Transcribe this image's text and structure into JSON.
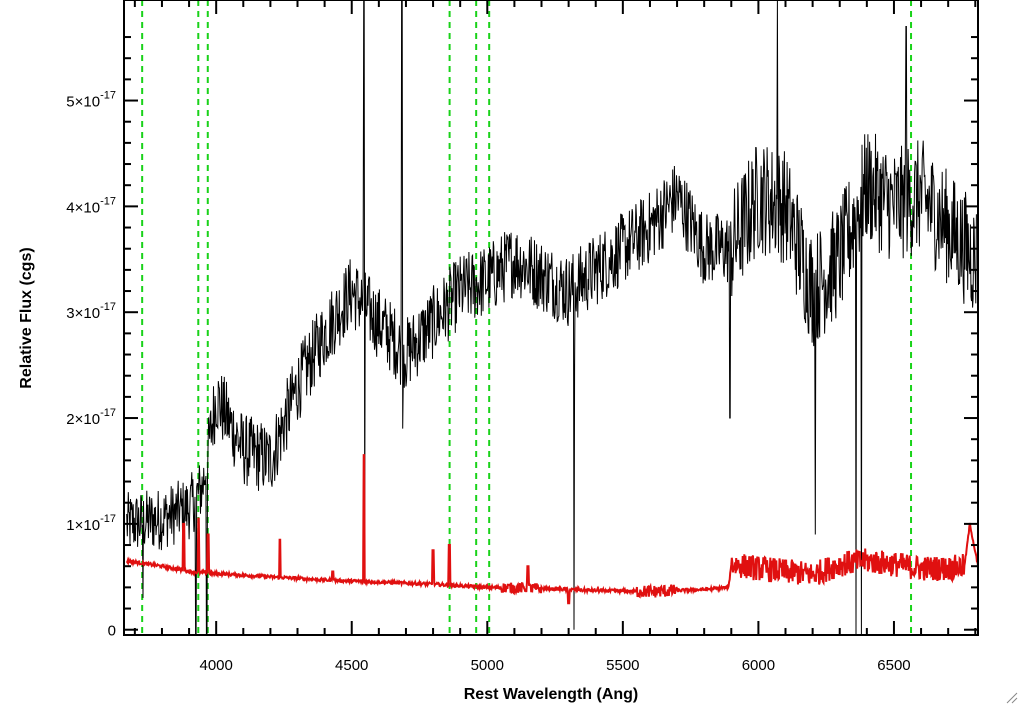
{
  "chart_data": {
    "type": "line",
    "title": "",
    "xlabel": "Rest Wavelength (Ang)",
    "ylabel": "Relative Flux (cgs)",
    "xlim": [
      3660,
      6810
    ],
    "ylim": [
      -5e-19,
      5.95e-17
    ],
    "x_ticks": [
      {
        "value": 4000,
        "label": "4000"
      },
      {
        "value": 4500,
        "label": "4500"
      },
      {
        "value": 5000,
        "label": "5000"
      },
      {
        "value": 5500,
        "label": "5500"
      },
      {
        "value": 6000,
        "label": "6000"
      },
      {
        "value": 6500,
        "label": "6500"
      }
    ],
    "y_ticks": [
      {
        "value": 0,
        "mantissa": "0",
        "exponent": ""
      },
      {
        "value": 1e-17,
        "mantissa": "1×10",
        "exponent": "-17"
      },
      {
        "value": 2e-17,
        "mantissa": "2×10",
        "exponent": "-17"
      },
      {
        "value": 3e-17,
        "mantissa": "3×10",
        "exponent": "-17"
      },
      {
        "value": 4e-17,
        "mantissa": "4×10",
        "exponent": "-17"
      },
      {
        "value": 5e-17,
        "mantissa": "5×10",
        "exponent": "-17"
      }
    ],
    "grid": false,
    "reference_lines_x": [
      3727,
      3934,
      3969,
      4861,
      4959,
      5007,
      6563
    ],
    "series": [
      {
        "role": "observed spectrum",
        "color": "#000000",
        "continuum": [
          [
            3670,
            1e-17
          ],
          [
            3800,
            1.05e-17
          ],
          [
            3900,
            1.15e-17
          ],
          [
            3950,
            1.35e-17
          ],
          [
            4000,
            2.2e-17
          ],
          [
            4100,
            1.7e-17
          ],
          [
            4200,
            1.6e-17
          ],
          [
            4300,
            2.3e-17
          ],
          [
            4400,
            2.8e-17
          ],
          [
            4500,
            3.2e-17
          ],
          [
            4600,
            2.9e-17
          ],
          [
            4700,
            2.6e-17
          ],
          [
            4800,
            2.9e-17
          ],
          [
            4900,
            3.2e-17
          ],
          [
            5000,
            3.3e-17
          ],
          [
            5100,
            3.5e-17
          ],
          [
            5300,
            3.2e-17
          ],
          [
            5400,
            3.4e-17
          ],
          [
            5500,
            3.6e-17
          ],
          [
            5600,
            3.8e-17
          ],
          [
            5700,
            4.1e-17
          ],
          [
            5800,
            3.6e-17
          ],
          [
            5900,
            3.6e-17
          ],
          [
            6000,
            4.1e-17
          ],
          [
            6100,
            4e-17
          ],
          [
            6200,
            3.2e-17
          ],
          [
            6300,
            3.5e-17
          ],
          [
            6400,
            4.2e-17
          ],
          [
            6500,
            4e-17
          ],
          [
            6600,
            4.1e-17
          ],
          [
            6700,
            3.8e-17
          ],
          [
            6800,
            3.5e-17
          ]
        ],
        "features": [
          {
            "x": 4545,
            "y": 5.95e-17
          },
          {
            "x": 4548,
            "y": 9e-18
          },
          {
            "x": 4685,
            "y": 5.95e-17
          },
          {
            "x": 4688,
            "y": 1.9e-17
          },
          {
            "x": 5320,
            "y": 0.0
          },
          {
            "x": 5322,
            "y": 2.5e-17
          },
          {
            "x": 5895,
            "y": 2e-17
          },
          {
            "x": 6070,
            "y": 5.95e-17
          },
          {
            "x": 6210,
            "y": 9e-18
          },
          {
            "x": 6360,
            "y": -5e-19
          },
          {
            "x": 6380,
            "y": -5e-19
          },
          {
            "x": 6545,
            "y": 5.7e-17
          },
          {
            "x": 3925,
            "y": -5e-19
          },
          {
            "x": 3965,
            "y": -5e-19
          },
          {
            "x": 3730,
            "y": 3e-18
          }
        ]
      },
      {
        "role": "model spectrum",
        "color": "#e01010",
        "continuum": [
          [
            3670,
            6.5e-18
          ],
          [
            3800,
            6e-18
          ],
          [
            3900,
            5.5e-18
          ],
          [
            4000,
            5.3e-18
          ],
          [
            4200,
            5e-18
          ],
          [
            4400,
            4.7e-18
          ],
          [
            4600,
            4.5e-18
          ],
          [
            4800,
            4.3e-18
          ],
          [
            5000,
            4e-18
          ],
          [
            5200,
            3.9e-18
          ],
          [
            5400,
            3.7e-18
          ],
          [
            5600,
            3.6e-18
          ],
          [
            5800,
            3.8e-18
          ],
          [
            5890,
            4e-18
          ],
          [
            5900,
            6.2e-18
          ],
          [
            6000,
            5.8e-18
          ],
          [
            6100,
            5.5e-18
          ],
          [
            6200,
            5.2e-18
          ],
          [
            6300,
            6.2e-18
          ],
          [
            6400,
            6.5e-18
          ],
          [
            6500,
            6.2e-18
          ],
          [
            6600,
            5.8e-18
          ],
          [
            6700,
            5.8e-18
          ],
          [
            6760,
            6e-18
          ],
          [
            6780,
            1e-17
          ],
          [
            6810,
            6e-18
          ]
        ],
        "emission_lines": [
          {
            "x": 3880,
            "y": 1e-17
          },
          {
            "x": 3935,
            "y": 1.05e-17
          },
          {
            "x": 3970,
            "y": 9e-18
          },
          {
            "x": 4235,
            "y": 8.5e-18
          },
          {
            "x": 4430,
            "y": 5.5e-18
          },
          {
            "x": 4545,
            "y": 1.65e-17
          },
          {
            "x": 4800,
            "y": 7.5e-18
          },
          {
            "x": 4860,
            "y": 8e-18
          },
          {
            "x": 5150,
            "y": 6e-18
          },
          {
            "x": 5300,
            "y": 2.5e-18
          }
        ]
      }
    ]
  }
}
